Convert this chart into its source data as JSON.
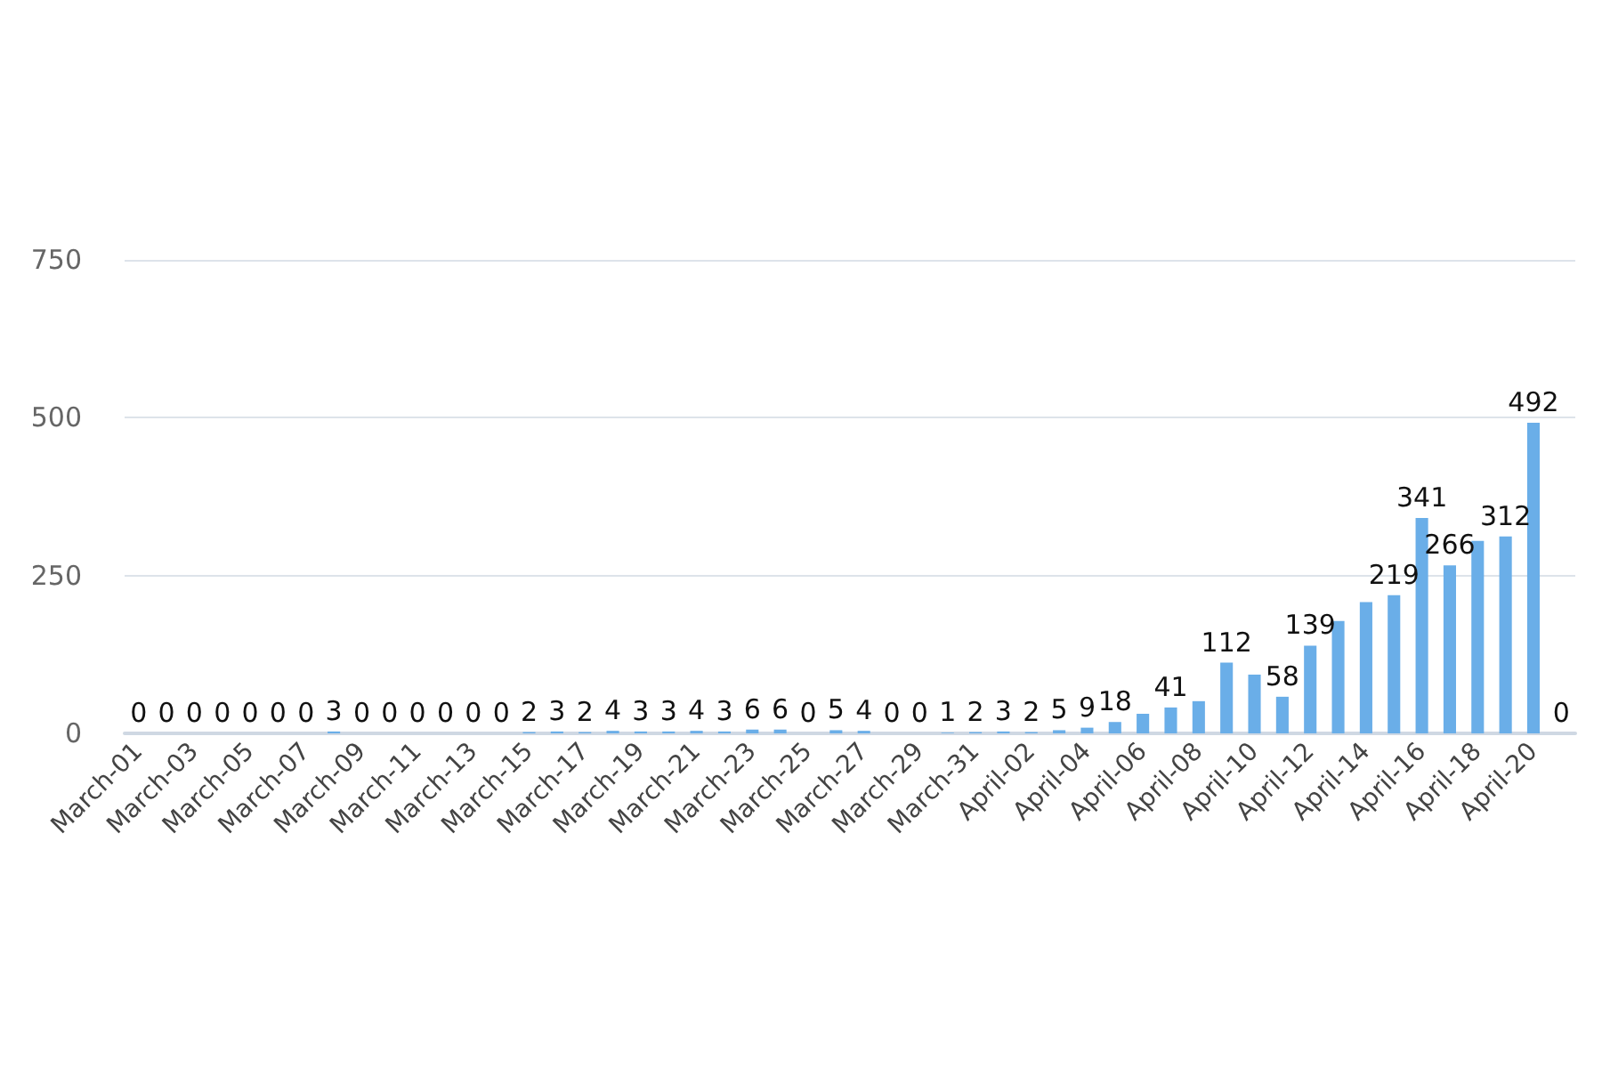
{
  "chart_data": {
    "type": "bar",
    "categories": [
      "March-01",
      null,
      "March-03",
      null,
      "March-05",
      null,
      "March-07",
      null,
      "March-09",
      null,
      "March-11",
      null,
      "March-13",
      null,
      "March-15",
      null,
      "March-17",
      null,
      "March-19",
      null,
      "March-21",
      null,
      "March-23",
      null,
      "March-25",
      null,
      "March-27",
      null,
      "March-29",
      null,
      "March-31",
      null,
      "April-02",
      null,
      "April-04",
      null,
      "April-06",
      null,
      "April-08",
      null,
      "April-10",
      null,
      "April-12",
      null,
      "April-14",
      null,
      "April-16",
      null,
      "April-18",
      null,
      "April-20",
      null
    ],
    "values": [
      0,
      0,
      0,
      0,
      0,
      0,
      0,
      3,
      0,
      0,
      0,
      0,
      0,
      0,
      2,
      3,
      2,
      4,
      3,
      3,
      4,
      3,
      6,
      6,
      0,
      5,
      4,
      0,
      0,
      1,
      2,
      3,
      2,
      5,
      9,
      18,
      31,
      41,
      51,
      112,
      93,
      58,
      139,
      178,
      208,
      219,
      341,
      266,
      305,
      312,
      492,
      0
    ],
    "value_labels": [
      "0",
      "0",
      "0",
      "0",
      "0",
      "0",
      "0",
      "3",
      "0",
      "0",
      "0",
      "0",
      "0",
      "0",
      "2",
      "3",
      "2",
      "4",
      "3",
      "3",
      "4",
      "3",
      "6",
      "6",
      "0",
      "5",
      "4",
      "0",
      "0",
      "1",
      "2",
      "3",
      "2",
      "5",
      "9",
      "18",
      null,
      "41",
      null,
      "112",
      null,
      "58",
      "139",
      null,
      null,
      "219",
      "341",
      "266",
      null,
      "312",
      "492",
      "0"
    ],
    "color": "#6aaee8",
    "ylim": [
      0,
      750
    ],
    "yticks": [
      0,
      250,
      500,
      750
    ],
    "grid": "y"
  }
}
